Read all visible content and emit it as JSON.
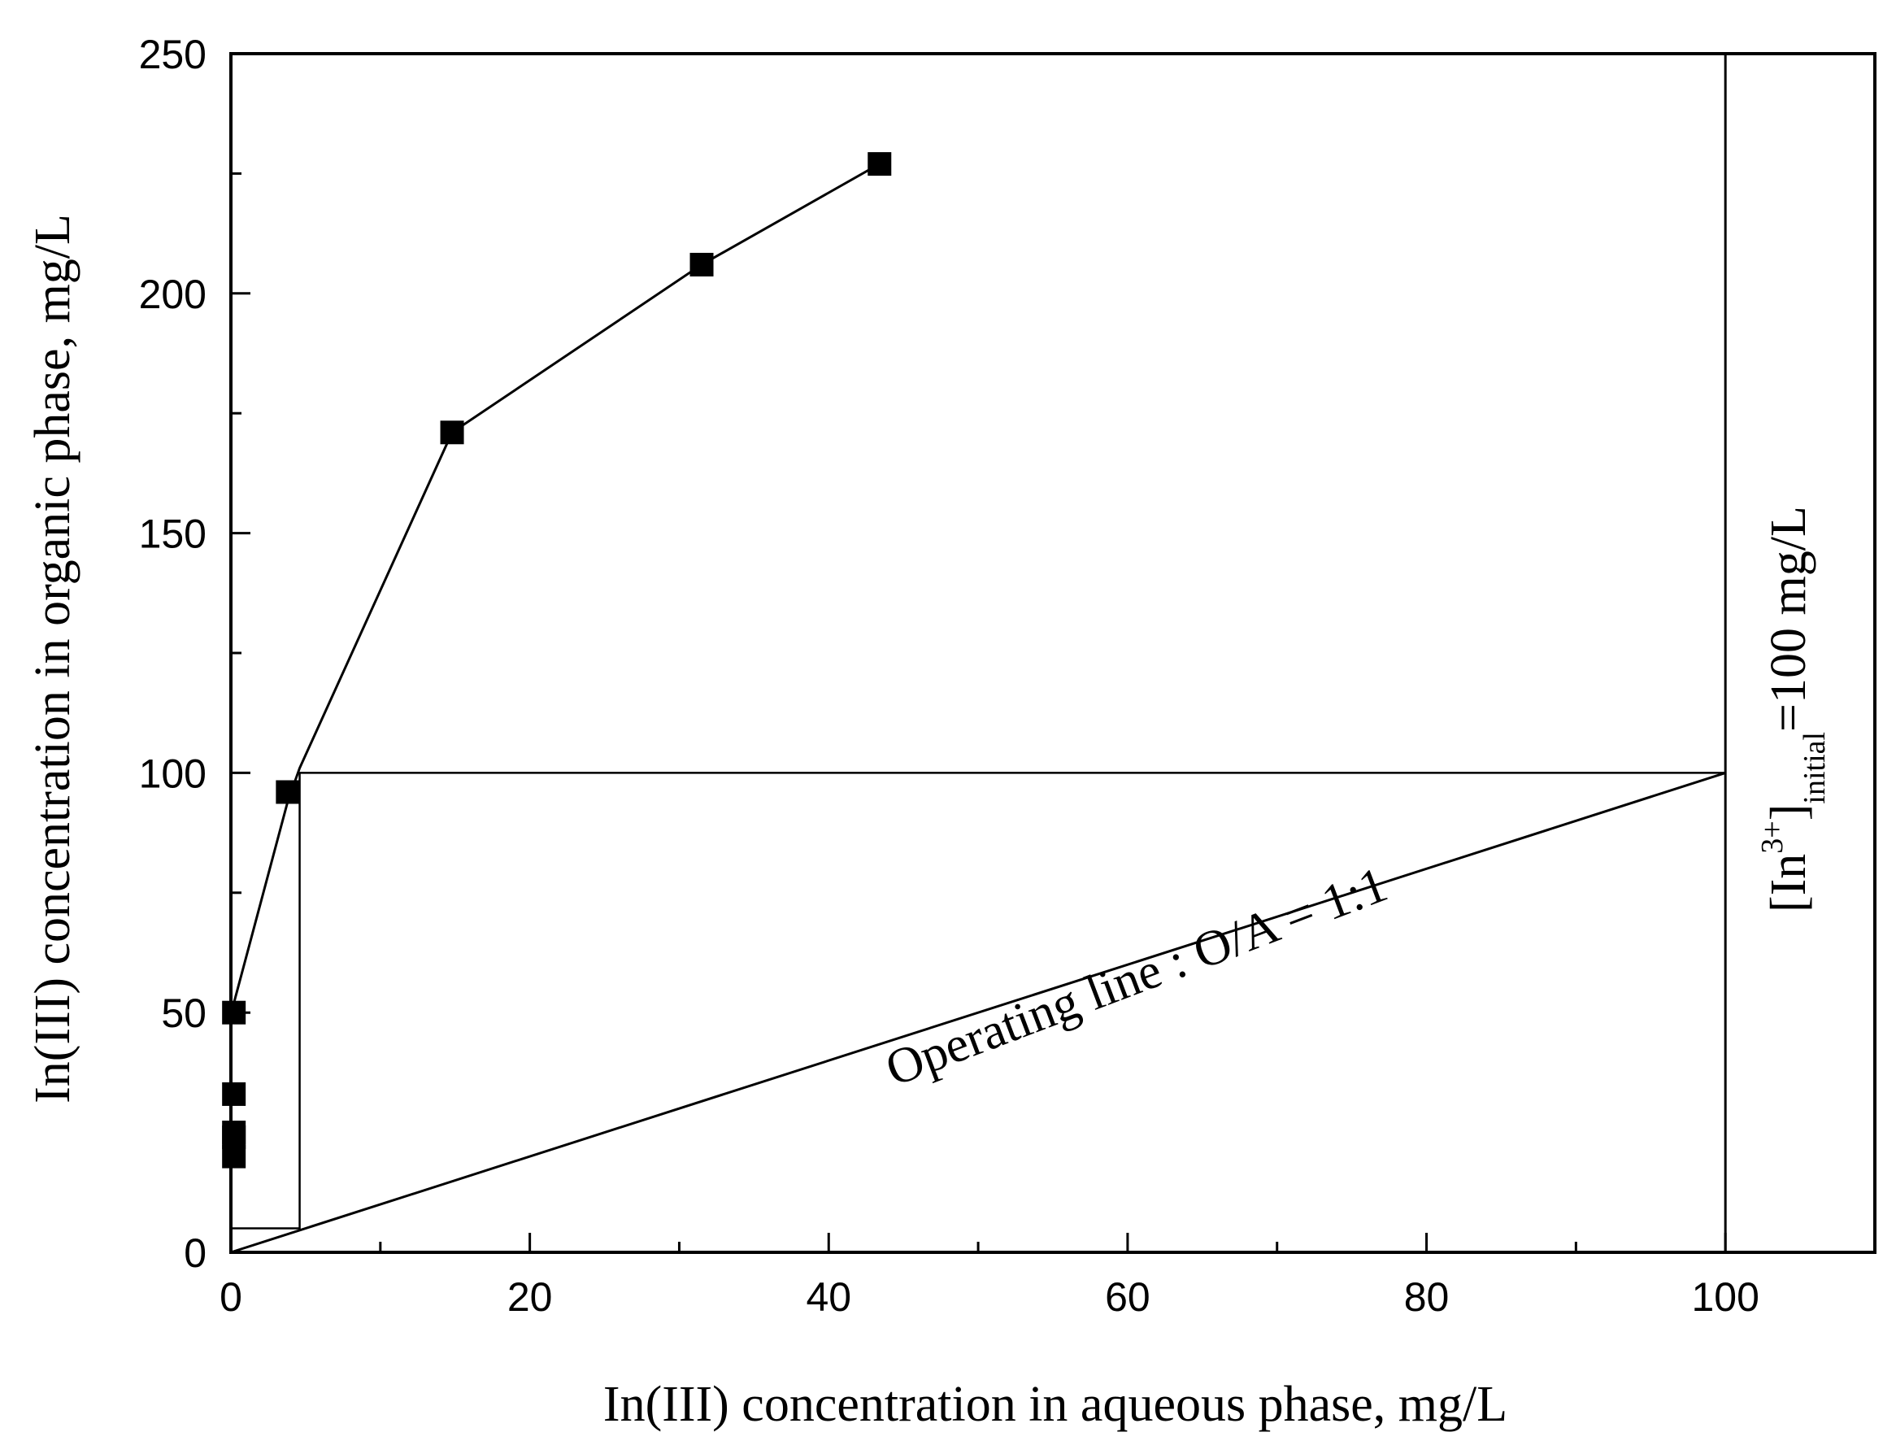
{
  "chart_data": {
    "type": "scatter",
    "xlabel": "In(III) concentration in aqueous phase, mg/L",
    "ylabel": "In(III) concentration in organic phase, mg/L",
    "xlim": [
      0,
      110
    ],
    "ylim": [
      0,
      250
    ],
    "x_ticks": [
      0,
      20,
      40,
      60,
      80,
      100
    ],
    "y_ticks": [
      0,
      50,
      100,
      150,
      200,
      250
    ],
    "x_minor_step": 10,
    "y_minor_step": 25,
    "grid": false,
    "series": [
      {
        "marker": "square",
        "x": [
          0.2,
          0.2,
          0.2,
          0.2,
          0.2,
          3.8,
          14.8,
          31.5,
          43.4
        ],
        "y": [
          20,
          24,
          25,
          33,
          50,
          96,
          171,
          206,
          227
        ]
      }
    ],
    "curve": {
      "x": [
        0.2,
        3.8,
        4.6,
        14.8,
        31.5,
        43.4
      ],
      "y": [
        52,
        94,
        101,
        171,
        206,
        227
      ]
    },
    "operating_line": {
      "label": "Operating line : O/A = 1:1",
      "x": [
        0,
        100
      ],
      "y": [
        0,
        100
      ]
    },
    "mccabe_thiele_steps": [
      [
        100,
        100
      ],
      [
        4.6,
        100
      ],
      [
        4.6,
        5
      ],
      [
        0,
        5
      ]
    ],
    "initial_line": {
      "x": 100,
      "label_main": "[In",
      "label_sup": "3+",
      "label_close": "]",
      "label_sub": "initial",
      "label_tail": "=100 mg/L"
    },
    "colors": {
      "line": "#000000",
      "marker": "#000000",
      "background": "#ffffff"
    }
  }
}
